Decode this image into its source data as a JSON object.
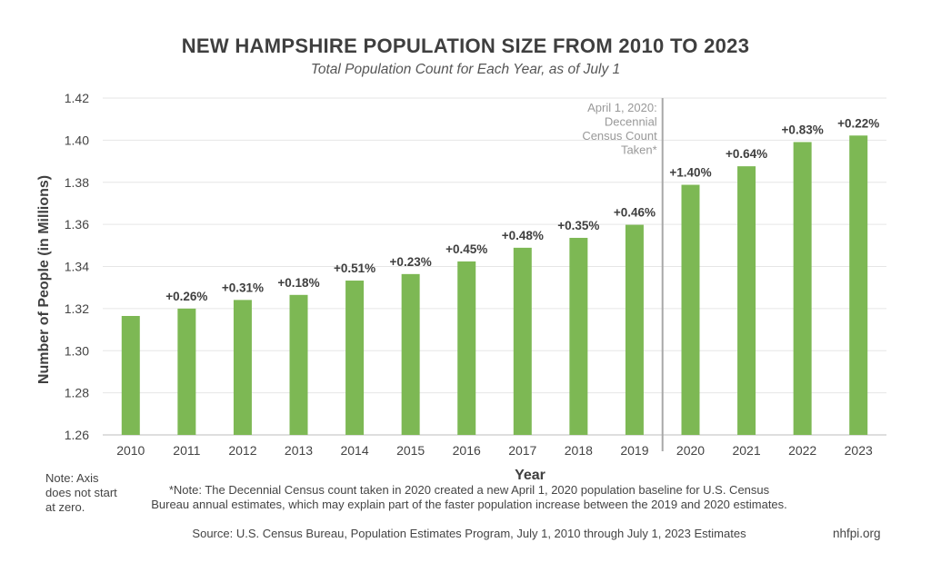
{
  "chart_data": {
    "type": "bar",
    "title": "NEW HAMPSHIRE POPULATION SIZE FROM 2010 TO 2023",
    "subtitle": "Total Population Count for Each Year, as of July 1",
    "xlabel": "Year",
    "ylabel": "Number of People (in Millions)",
    "ylim": [
      1.26,
      1.42
    ],
    "yticks": [
      "1.26",
      "1.28",
      "1.30",
      "1.32",
      "1.34",
      "1.36",
      "1.38",
      "1.40",
      "1.42"
    ],
    "grid": true,
    "categories": [
      "2010",
      "2011",
      "2012",
      "2013",
      "2014",
      "2015",
      "2016",
      "2017",
      "2018",
      "2019",
      "2020",
      "2021",
      "2022",
      "2023"
    ],
    "values": [
      1.3165,
      1.32,
      1.3241,
      1.3265,
      1.3333,
      1.3364,
      1.3424,
      1.3489,
      1.3536,
      1.3598,
      1.3788,
      1.3876,
      1.3991,
      1.4022
    ],
    "data_labels": [
      "",
      "+0.26%",
      "+0.31%",
      "+0.18%",
      "+0.51%",
      "+0.23%",
      "+0.45%",
      "+0.48%",
      "+0.35%",
      "+0.46%",
      "+1.40%",
      "+0.64%",
      "+0.83%",
      "+0.22%"
    ],
    "bar_color": "#7db854",
    "annotation": {
      "after_category": "2019",
      "lines": [
        "April 1, 2020:",
        "Decennial",
        "Census Count",
        "Taken*"
      ]
    }
  },
  "notes": {
    "axis_note": "Note: Axis does not start at zero.",
    "footnote": "*Note: The Decennial Census count taken in 2020 created a new April 1, 2020 population baseline for U.S. Census Bureau annual estimates, which may explain part of the faster population increase between the 2019 and 2020 estimates.",
    "source": "Source: U.S. Census Bureau, Population Estimates Program, July 1, 2010 through July 1, 2023 Estimates",
    "site": "nhfpi.org"
  }
}
